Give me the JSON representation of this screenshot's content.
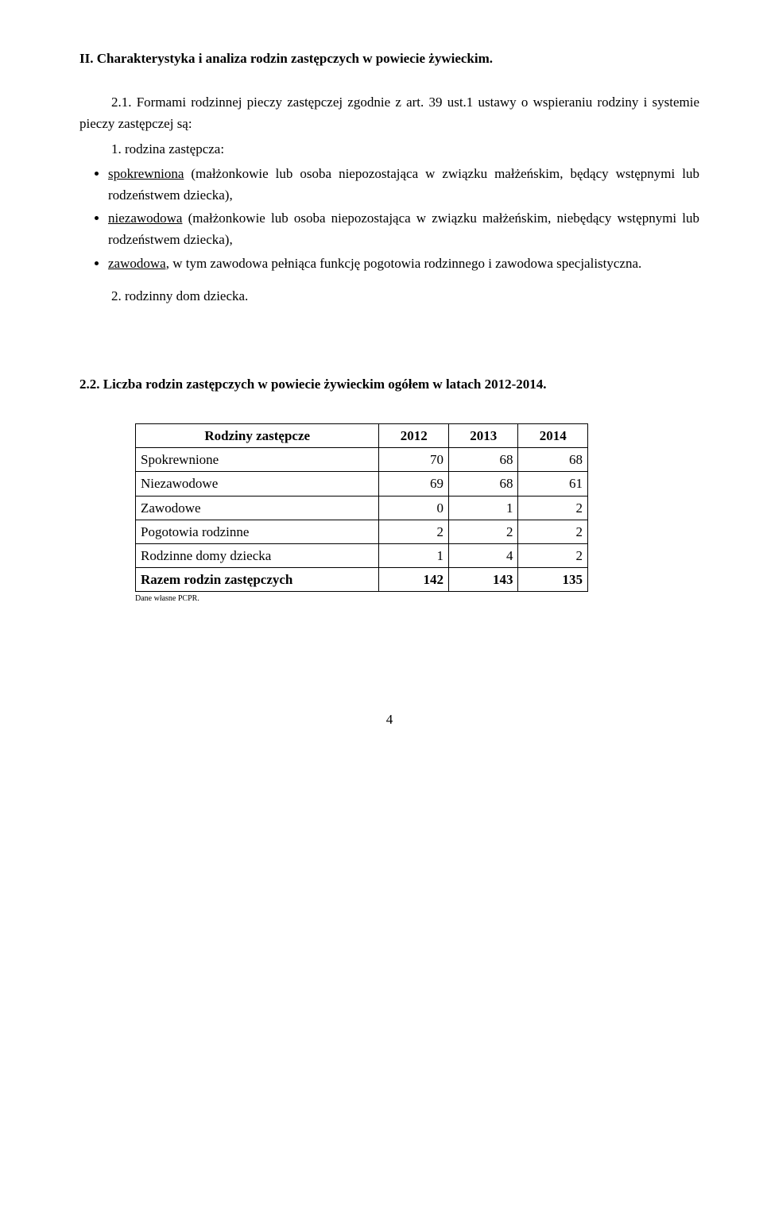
{
  "heading": "II. Charakterystyka i analiza rodzin zastępczych w powiecie żywieckim.",
  "p1": "2.1. Formami rodzinnej pieczy zastępczej zgodnie z art. 39 ust.1 ustawy o wspieraniu rodziny i systemie pieczy zastępczej są:",
  "p2": "1. rodzina zastępcza:",
  "bullets1": [
    {
      "u": "spokrewniona",
      "rest": " (małżonkowie lub osoba niepozostająca w związku małżeńskim, będący wstępnymi lub rodzeństwem dziecka),"
    },
    {
      "u": "niezawodowa",
      "rest": " (małżonkowie lub osoba niepozostająca w związku małżeńskim, niebędący wstępnymi lub rodzeństwem dziecka),"
    },
    {
      "u": "zawodowa,",
      "rest": " w tym zawodowa pełniąca funkcję pogotowia rodzinnego i zawodowa specjalistyczna."
    }
  ],
  "p3": "2. rodzinny dom dziecka.",
  "subheading": "2.2. Liczba rodzin zastępczych w powiecie żywieckim  ogółem w latach 2012-2014.",
  "table": {
    "headers": [
      "Rodziny zastępcze",
      "2012",
      "2013",
      "2014"
    ],
    "col_widths": [
      "320px",
      "80px",
      "80px",
      "80px"
    ],
    "rows": [
      {
        "label": "Spokrewnione",
        "v": [
          "70",
          "68",
          "68"
        ],
        "bold": false
      },
      {
        "label": "Niezawodowe",
        "v": [
          "69",
          "68",
          "61"
        ],
        "bold": false
      },
      {
        "label": "Zawodowe",
        "v": [
          "0",
          "1",
          "2"
        ],
        "bold": false
      },
      {
        "label": "Pogotowia rodzinne",
        "v": [
          "2",
          "2",
          "2"
        ],
        "bold": false
      },
      {
        "label": "Rodzinne domy dziecka",
        "v": [
          "1",
          "4",
          "2"
        ],
        "bold": false
      },
      {
        "label": "Razem rodzin zastępczych",
        "v": [
          "142",
          "143",
          "135"
        ],
        "bold": true
      }
    ]
  },
  "footnote": "Dane własne PCPR.",
  "page_number": "4"
}
